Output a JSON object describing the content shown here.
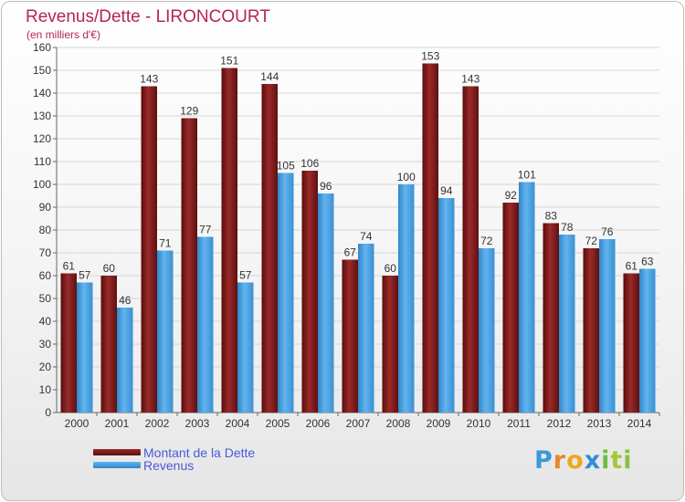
{
  "title": "Revenus/Dette - LIRONCOURT",
  "subtitle": "(en milliers d'€)",
  "logo": {
    "letters": [
      "P",
      "r",
      "o",
      "x",
      "i",
      "t",
      "i"
    ],
    "colors": [
      "#3a9ad9",
      "#e9862c",
      "#f0a81e",
      "#2f8cdb",
      "#6cbe45",
      "#a4c93a",
      "#8dbf3c"
    ]
  },
  "legend": [
    {
      "label": "Montant de la Dette",
      "color": "#7a1a1a"
    },
    {
      "label": "Revenus",
      "color": "#4aa3e6"
    }
  ],
  "chart_data": {
    "type": "bar",
    "title": "Revenus/Dette - LIRONCOURT",
    "ylabel": "(en milliers d'€)",
    "ylim": [
      0,
      160
    ],
    "ytick_step": 10,
    "grid": true,
    "categories": [
      "2000",
      "2001",
      "2002",
      "2003",
      "2004",
      "2005",
      "2006",
      "2007",
      "2008",
      "2009",
      "2010",
      "2011",
      "2012",
      "2013",
      "2014"
    ],
    "series": [
      {
        "name": "Montant de la Dette",
        "color": "#7a1a1a",
        "values": [
          61,
          60,
          143,
          129,
          151,
          144,
          106,
          67,
          60,
          153,
          143,
          92,
          83,
          72,
          61
        ]
      },
      {
        "name": "Revenus",
        "color": "#4aa3e6",
        "values": [
          57,
          46,
          71,
          77,
          57,
          105,
          96,
          74,
          100,
          94,
          72,
          101,
          78,
          76,
          63
        ]
      }
    ]
  }
}
